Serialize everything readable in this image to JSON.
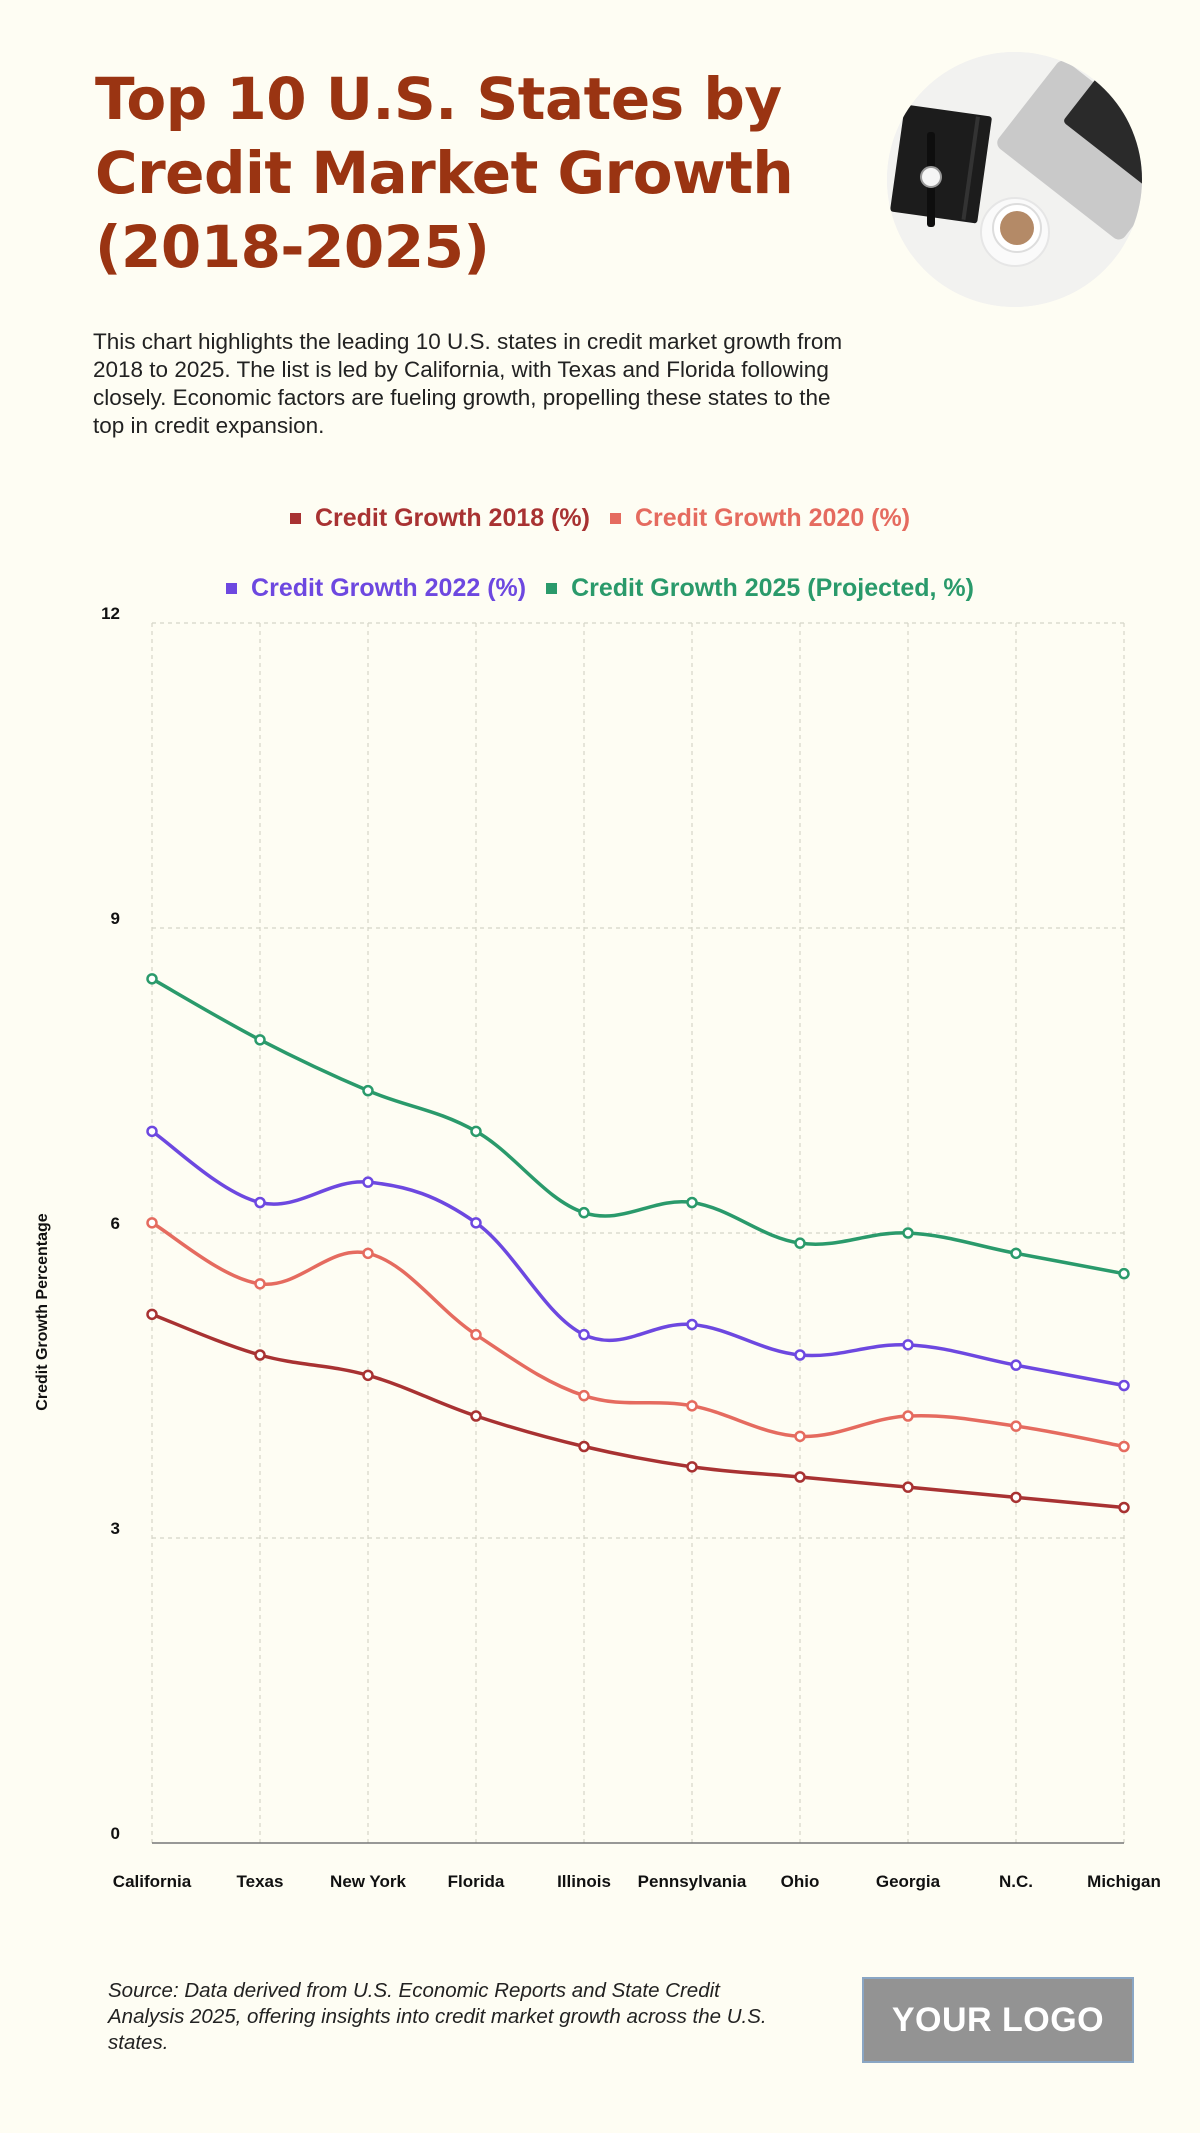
{
  "header": {
    "title": "Top 10 U.S. States by Credit Market Growth (2018-2025)",
    "description": "This chart highlights the leading 10 U.S. states in credit market growth from 2018 to 2025. The list is led by California, with Texas and Florida following closely. Economic factors are fueling growth, propelling these states to the top in credit expansion.",
    "photo": "desk-photo-notebook-watch-coffee-laptop"
  },
  "legend": [
    {
      "label": "Credit Growth 2018 (%)",
      "color": "#a83232"
    },
    {
      "label": "Credit Growth 2020 (%)",
      "color": "#e56b5f"
    },
    {
      "label": "Credit Growth 2022 (%)",
      "color": "#6d48e0"
    },
    {
      "label": "Credit Growth 2025 (Projected, %)",
      "color": "#2a9a6b"
    }
  ],
  "chart_data": {
    "type": "line",
    "title": "Top 10 U.S. States by Credit Market Growth (2018-2025)",
    "xlabel": "",
    "ylabel": "Credit Growth Percentage",
    "ylim": [
      0,
      12
    ],
    "yticks": [
      0,
      3,
      6,
      9,
      12
    ],
    "grid": true,
    "legend_position": "top",
    "categories": [
      "California",
      "Texas",
      "New York",
      "Florida",
      "Illinois",
      "Pennsylvania",
      "Ohio",
      "Georgia",
      "N.C.",
      "Michigan"
    ],
    "series": [
      {
        "name": "Credit Growth 2018 (%)",
        "color": "#a83232",
        "values": [
          5.2,
          4.8,
          4.6,
          4.2,
          3.9,
          3.7,
          3.6,
          3.5,
          3.4,
          3.3
        ]
      },
      {
        "name": "Credit Growth 2020 (%)",
        "color": "#e56b5f",
        "values": [
          6.1,
          5.5,
          5.8,
          5.0,
          4.4,
          4.3,
          4.0,
          4.2,
          4.1,
          3.9
        ]
      },
      {
        "name": "Credit Growth 2022 (%)",
        "color": "#6d48e0",
        "values": [
          7.0,
          6.3,
          6.5,
          6.1,
          5.0,
          5.1,
          4.8,
          4.9,
          4.7,
          4.5
        ]
      },
      {
        "name": "Credit Growth 2025 (Projected, %)",
        "color": "#2a9a6b",
        "values": [
          8.5,
          7.9,
          7.4,
          7.0,
          6.2,
          6.3,
          5.9,
          6.0,
          5.8,
          5.6
        ]
      }
    ]
  },
  "footer": {
    "source": "Source: Data derived from U.S. Economic Reports and State Credit Analysis 2025, offering insights into credit market growth across the U.S. states.",
    "logo": "YOUR LOGO"
  }
}
